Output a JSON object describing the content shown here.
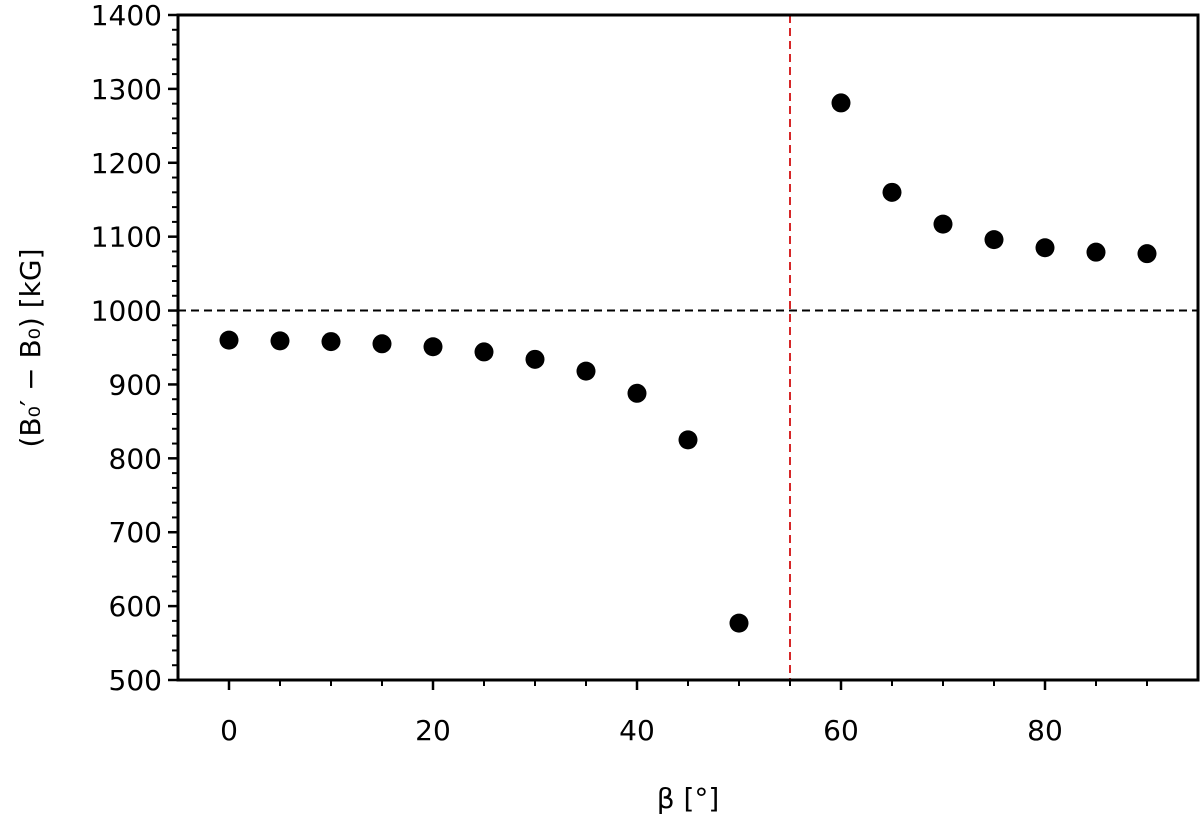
{
  "chart_data": {
    "type": "scatter",
    "xlabel": "β [°]",
    "ylabel": "(B₀′ − B₀) [kG]",
    "xlim": [
      -5,
      95
    ],
    "ylim": [
      500,
      1400
    ],
    "x_ticks": [
      0,
      20,
      40,
      60,
      80
    ],
    "y_ticks": [
      500,
      600,
      700,
      800,
      900,
      1000,
      1100,
      1200,
      1300,
      1400
    ],
    "grid": false,
    "series": [
      {
        "x": [
          0,
          5,
          10,
          15,
          20,
          25,
          30,
          35,
          40,
          45,
          50,
          60,
          65,
          70,
          75,
          80,
          85,
          90
        ],
        "y": [
          960,
          959,
          958,
          955,
          951,
          944,
          934,
          918,
          888,
          825,
          577,
          1281,
          1160,
          1117,
          1096,
          1085,
          1079,
          1077
        ],
        "color": "#000000"
      }
    ],
    "reference_lines": [
      {
        "orientation": "horizontal",
        "value": 1000,
        "style": "dashed",
        "color": "#000000"
      },
      {
        "orientation": "vertical",
        "value": 55,
        "style": "dashed",
        "color": "#d62728"
      }
    ]
  }
}
